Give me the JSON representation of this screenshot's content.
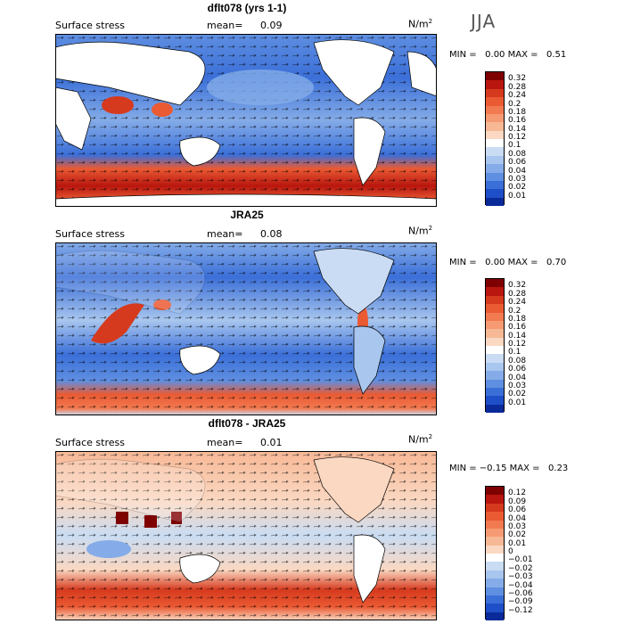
{
  "season": "JJA",
  "panels": [
    {
      "title": "dflt078 (yrs 1-1)",
      "variable": "Surface stress",
      "mean_label": "mean=",
      "mean_value": "0.09",
      "units_base": "N/m",
      "units_exp": "2",
      "minmax": "MIN =   0.00 MAX =   0.51",
      "ticks": [
        "0.32",
        "0.28",
        "0.24",
        "0.2",
        "0.18",
        "0.16",
        "0.14",
        "0.12",
        "0.1",
        "0.08",
        "0.06",
        "0.04",
        "0.03",
        "0.02",
        "0.01"
      ],
      "colors": [
        "#7f0000",
        "#b8160e",
        "#d63a1e",
        "#ea5a33",
        "#f27a50",
        "#f59a72",
        "#f7b896",
        "#fad8c2",
        "#ffffff",
        "#c9dcf3",
        "#a8c6ee",
        "#85ace8",
        "#5f8fe1",
        "#3b6fd8",
        "#1f4fc8",
        "#0a2a9a"
      ]
    },
    {
      "title": "JRA25",
      "variable": "Surface stress",
      "mean_label": "mean=",
      "mean_value": "0.08",
      "units_base": "N/m",
      "units_exp": "2",
      "minmax": "MIN =   0.00 MAX =   0.70",
      "ticks": [
        "0.32",
        "0.28",
        "0.24",
        "0.2",
        "0.18",
        "0.16",
        "0.14",
        "0.12",
        "0.1",
        "0.08",
        "0.06",
        "0.04",
        "0.03",
        "0.02",
        "0.01"
      ],
      "colors": [
        "#7f0000",
        "#b8160e",
        "#d63a1e",
        "#ea5a33",
        "#f27a50",
        "#f59a72",
        "#f7b896",
        "#fad8c2",
        "#ffffff",
        "#c9dcf3",
        "#a8c6ee",
        "#85ace8",
        "#5f8fe1",
        "#3b6fd8",
        "#1f4fc8",
        "#0a2a9a"
      ]
    },
    {
      "title": "dflt078 - JRA25",
      "variable": "Surface stress",
      "mean_label": "mean=",
      "mean_value": "0.01",
      "units_base": "N/m",
      "units_exp": "2",
      "minmax": "MIN = −0.15 MAX =   0.23",
      "ticks": [
        "0.12",
        "0.09",
        "0.06",
        "0.04",
        "0.03",
        "0.02",
        "0.01",
        "0",
        "−0.01",
        "−0.02",
        "−0.03",
        "−0.04",
        "−0.06",
        "−0.09",
        "−0.12"
      ],
      "colors": [
        "#7f0000",
        "#b8160e",
        "#d63a1e",
        "#ea5a33",
        "#f27a50",
        "#f59a72",
        "#f7b896",
        "#fad8c2",
        "#ffffff",
        "#c9dcf3",
        "#a8c6ee",
        "#85ace8",
        "#5f8fe1",
        "#3b6fd8",
        "#1f4fc8",
        "#0a2a9a"
      ]
    }
  ]
}
